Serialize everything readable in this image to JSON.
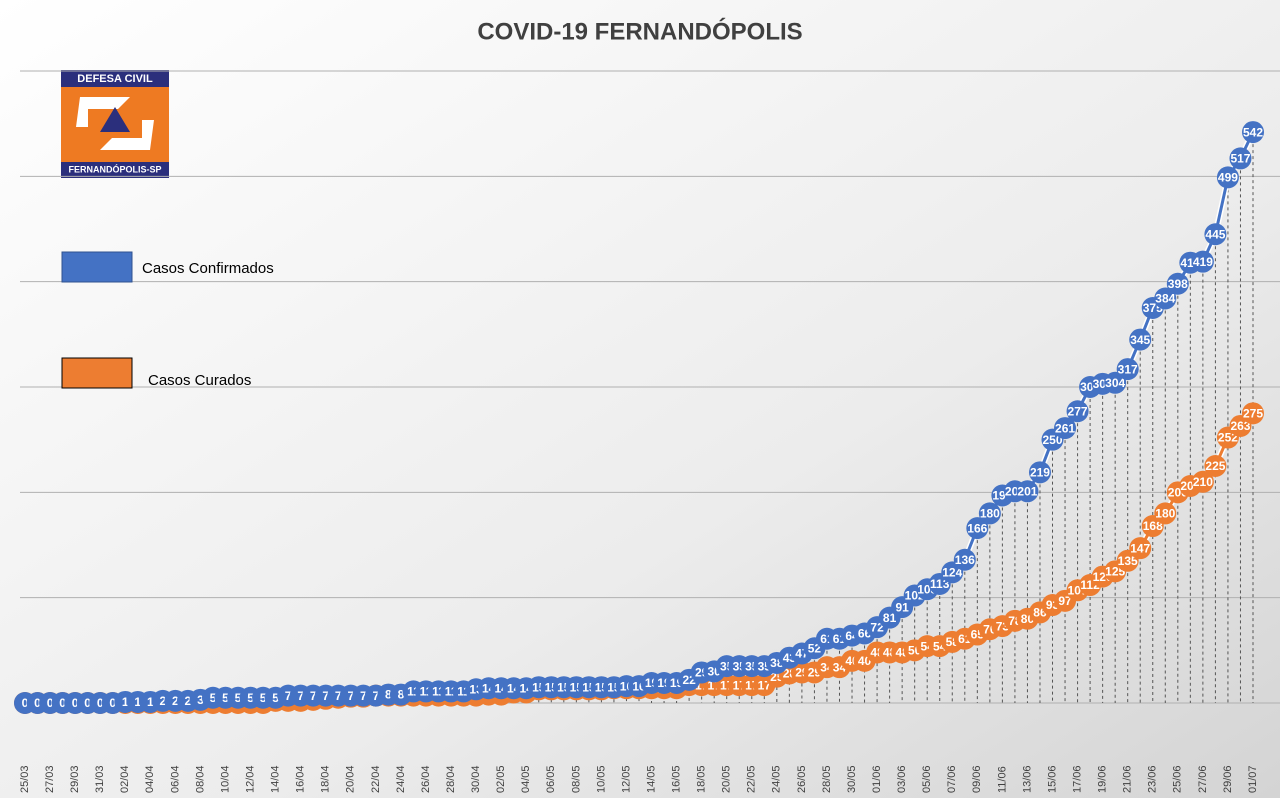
{
  "logo": {
    "top": "DEFESA CIVIL",
    "bottom": "FERNANDÓPOLIS-SP"
  },
  "chart_data": {
    "type": "line",
    "title": "COVID-19 FERNANDÓPOLIS",
    "categories": [
      "25/03",
      null,
      "27/03",
      null,
      "29/03",
      null,
      "31/03",
      null,
      "02/04",
      null,
      "04/04",
      null,
      "06/04",
      null,
      "08/04",
      null,
      "10/04",
      null,
      "12/04",
      null,
      "14/04",
      null,
      "16/04",
      null,
      "18/04",
      null,
      "20/04",
      null,
      "22/04",
      null,
      "24/04",
      null,
      "26/04",
      null,
      "28/04",
      null,
      "30/04",
      null,
      "02/05",
      null,
      "04/05",
      null,
      "06/05",
      null,
      "08/05",
      null,
      "10/05",
      null,
      "12/05",
      null,
      "14/05",
      null,
      "16/05",
      null,
      "18/05",
      null,
      "20/05",
      null,
      "22/05",
      null,
      "24/05",
      null,
      "26/05",
      null,
      "28/05",
      null,
      "30/05",
      null,
      "01/06",
      null,
      "03/06",
      null,
      "05/06",
      null,
      "07/06",
      null,
      "09/06",
      null,
      "11/06",
      null,
      "13/06",
      null,
      "15/06",
      null,
      "17/06",
      null,
      "19/06",
      null,
      "21/06",
      null,
      "23/06",
      null,
      "25/06",
      null,
      "27/06",
      null,
      "29/06",
      null,
      "01/07"
    ],
    "series": [
      {
        "name": "Casos Confirmados",
        "color": "#4472c4",
        "values": [
          0,
          0,
          0,
          0,
          0,
          0,
          0,
          0,
          1,
          1,
          1,
          2,
          2,
          2,
          3,
          5,
          5,
          5,
          5,
          5,
          5,
          7,
          7,
          7,
          7,
          7,
          7,
          7,
          7,
          8,
          8,
          11,
          11,
          11,
          11,
          11,
          13,
          14,
          14,
          14,
          14,
          15,
          15,
          15,
          15,
          15,
          15,
          15,
          16,
          16,
          19,
          19,
          19,
          22,
          29,
          30,
          35,
          35,
          35,
          35,
          38,
          43,
          47,
          52,
          61,
          61,
          64,
          66,
          72,
          81,
          91,
          102,
          108,
          113,
          124,
          136,
          166,
          180,
          197,
          201,
          201,
          219,
          250,
          261,
          277,
          300,
          303,
          304,
          317,
          345,
          375,
          384,
          398,
          418,
          419,
          445,
          499,
          517,
          542
        ]
      },
      {
        "name": "Casos Curados",
        "color": "#ed7d31",
        "values": [
          0,
          0,
          0,
          0,
          0,
          0,
          0,
          0,
          0,
          0,
          0,
          0,
          0,
          0,
          0,
          0,
          0,
          0,
          0,
          0,
          2,
          2,
          2,
          3,
          4,
          5,
          6,
          6,
          7,
          7,
          7,
          7,
          7,
          7,
          7,
          7,
          7,
          8,
          8,
          10,
          10,
          13,
          13,
          13,
          13,
          13,
          13,
          14,
          14,
          14,
          14,
          14,
          14,
          17,
          17,
          17,
          17,
          17,
          17,
          17,
          25,
          28,
          29,
          29,
          34,
          34,
          40,
          40,
          48,
          48,
          48,
          50,
          54,
          54,
          58,
          61,
          65,
          70,
          73,
          78,
          80,
          86,
          93,
          97,
          107,
          112,
          120,
          125,
          135,
          147,
          168,
          180,
          200,
          206,
          210,
          225,
          252,
          263,
          275
        ]
      }
    ],
    "ylim": [
      0,
      600
    ],
    "yticks": [
      0,
      100,
      200,
      300,
      400,
      500,
      600
    ],
    "grid": true
  }
}
